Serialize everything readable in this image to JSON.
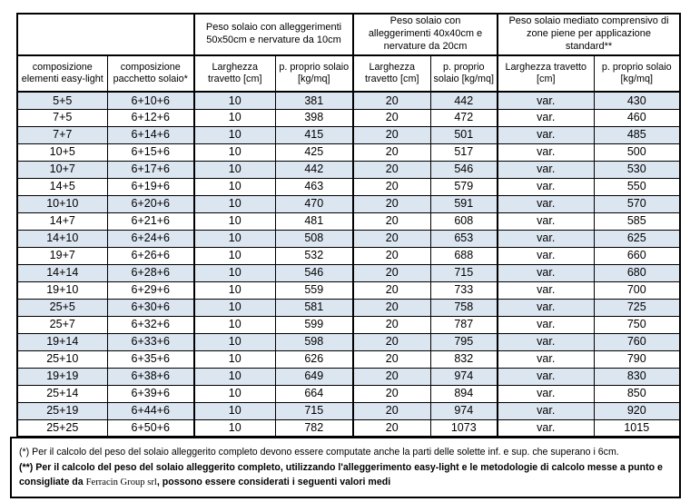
{
  "table": {
    "group_headers": [
      "Peso solaio con alleggerimenti 50x50cm e nervature da 10cm",
      "Peso solaio con alleggerimenti 40x40cm e nervature da 20cm",
      "Peso solaio mediato comprensivo di zone piene per applicazione standard**"
    ],
    "column_headers": [
      "composizione elementi easy-light",
      "composizione pacchetto solaio*",
      "Larghezza travetto [cm]",
      "p. proprio solaio [kg/mq]",
      "Larghezza travetto  [cm]",
      "p. proprio solaio [kg/mq]",
      "Larghezza travetto [cm]",
      "p. proprio solaio [kg/mq]"
    ],
    "rows": [
      [
        "5+5",
        "6+10+6",
        "10",
        "381",
        "20",
        "442",
        "var.",
        "430"
      ],
      [
        "7+5",
        "6+12+6",
        "10",
        "398",
        "20",
        "472",
        "var.",
        "460"
      ],
      [
        "7+7",
        "6+14+6",
        "10",
        "415",
        "20",
        "501",
        "var.",
        "485"
      ],
      [
        "10+5",
        "6+15+6",
        "10",
        "425",
        "20",
        "517",
        "var.",
        "500"
      ],
      [
        "10+7",
        "6+17+6",
        "10",
        "442",
        "20",
        "546",
        "var.",
        "530"
      ],
      [
        "14+5",
        "6+19+6",
        "10",
        "463",
        "20",
        "579",
        "var.",
        "550"
      ],
      [
        "10+10",
        "6+20+6",
        "10",
        "470",
        "20",
        "591",
        "var.",
        "570"
      ],
      [
        "14+7",
        "6+21+6",
        "10",
        "481",
        "20",
        "608",
        "var.",
        "585"
      ],
      [
        "14+10",
        "6+24+6",
        "10",
        "508",
        "20",
        "653",
        "var.",
        "625"
      ],
      [
        "19+7",
        "6+26+6",
        "10",
        "532",
        "20",
        "688",
        "var.",
        "660"
      ],
      [
        "14+14",
        "6+28+6",
        "10",
        "546",
        "20",
        "715",
        "var.",
        "680"
      ],
      [
        "19+10",
        "6+29+6",
        "10",
        "559",
        "20",
        "733",
        "var.",
        "700"
      ],
      [
        "25+5",
        "6+30+6",
        "10",
        "581",
        "20",
        "758",
        "var.",
        "725"
      ],
      [
        "25+7",
        "6+32+6",
        "10",
        "599",
        "20",
        "787",
        "var.",
        "750"
      ],
      [
        "19+14",
        "6+33+6",
        "10",
        "598",
        "20",
        "795",
        "var.",
        "760"
      ],
      [
        "25+10",
        "6+35+6",
        "10",
        "626",
        "20",
        "832",
        "var.",
        "790"
      ],
      [
        "19+19",
        "6+38+6",
        "10",
        "649",
        "20",
        "974",
        "var.",
        "830"
      ],
      [
        "25+14",
        "6+39+6",
        "10",
        "664",
        "20",
        "894",
        "var.",
        "850"
      ],
      [
        "25+19",
        "6+44+6",
        "10",
        "715",
        "20",
        "974",
        "var.",
        "920"
      ],
      [
        "25+25",
        "6+50+6",
        "10",
        "782",
        "20",
        "1073",
        "var.",
        "1015"
      ]
    ],
    "shaded_row_color": "#dce6f1",
    "border_color": "#000000"
  },
  "footnotes": {
    "note1_marker": "(*)",
    "note1_text": " Per il calcolo del peso del solaio alleggerito completo devono essere computate anche la parti delle solette inf. e sup. che superano i 6cm.",
    "note2_marker": "(**)",
    "note2_part1": " Per il calcolo del peso del solaio alleggerito completo, utilizzando l'alleggerimento easy-light e le metodologie di calcolo messe a punto e consigliate da ",
    "note2_company": "Ferracin Group srl",
    "note2_part2": ", possono essere considerati i seguenti valori medi"
  }
}
